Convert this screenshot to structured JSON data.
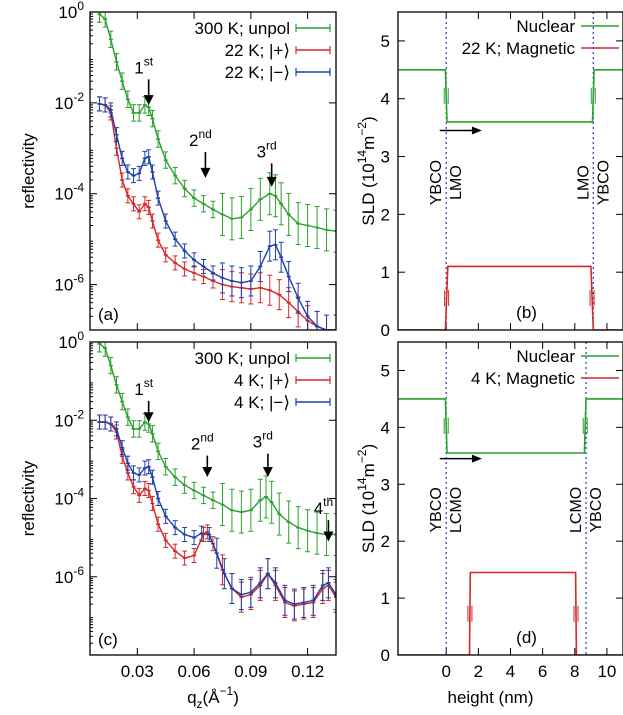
{
  "chart_data": [
    {
      "panel": "a",
      "type": "line",
      "panel_label": "(a)",
      "xlabel": "",
      "ylabel": "reflectivity",
      "xlim": [
        0.005,
        0.135
      ],
      "ylim_log10": [
        -7,
        0
      ],
      "y_scale": "log",
      "x_ticks": [],
      "y_ticks": [
        {
          "exp": 0,
          "label": "10",
          "sup": "0"
        },
        {
          "exp": -2,
          "label": "10",
          "sup": "-2"
        },
        {
          "exp": -4,
          "label": "10",
          "sup": "-4"
        },
        {
          "exp": -6,
          "label": "10",
          "sup": "-6"
        }
      ],
      "legend_position": "top-right",
      "series": [
        {
          "name": "300 K; unpol",
          "color": "#2ca02c",
          "x": [
            0.01,
            0.013,
            0.016,
            0.019,
            0.022,
            0.025,
            0.028,
            0.031,
            0.034,
            0.036,
            0.038,
            0.041,
            0.045,
            0.05,
            0.055,
            0.06,
            0.065,
            0.07,
            0.075,
            0.08,
            0.085,
            0.09,
            0.095,
            0.1,
            0.103,
            0.106,
            0.11,
            0.115,
            0.12,
            0.125,
            0.13,
            0.135
          ],
          "y": [
            0.9,
            0.7,
            0.25,
            0.08,
            0.03,
            0.012,
            0.006,
            0.006,
            0.009,
            0.008,
            0.0045,
            0.0016,
            0.00055,
            0.00025,
            0.00013,
            8e-05,
            6e-05,
            4.5e-05,
            3.5e-05,
            2.8e-05,
            3e-05,
            4.5e-05,
            7.5e-05,
            0.0001,
            9e-05,
            6e-05,
            3.5e-05,
            2.2e-05,
            2e-05,
            1.8e-05,
            1.6e-05,
            1.5e-05
          ]
        },
        {
          "name": "22 K; |+⟩",
          "color": "#d62728",
          "x": [
            0.01,
            0.013,
            0.016,
            0.019,
            0.022,
            0.025,
            0.028,
            0.031,
            0.034,
            0.036,
            0.038,
            0.041,
            0.045,
            0.05,
            0.055,
            0.06,
            0.065,
            0.07,
            0.075,
            0.08,
            0.085,
            0.09,
            0.095,
            0.1,
            0.105,
            0.11,
            0.115,
            0.12,
            0.125,
            0.13,
            0.135
          ],
          "y": [
            0.0095,
            0.009,
            0.006,
            0.001,
            0.0002,
            9e-05,
            6e-05,
            4e-05,
            6e-05,
            5e-05,
            2.5e-05,
            9.5e-06,
            4.5e-06,
            3e-06,
            2.2e-06,
            1.8e-06,
            1.5e-06,
            1.2e-06,
            1e-06,
            9e-07,
            8.5e-07,
            8e-07,
            8.5e-07,
            7.5e-07,
            6e-07,
            4e-07,
            2.5e-07,
            1.6e-07,
            1.2e-07,
            1e-07,
            1e-07
          ]
        },
        {
          "name": "22 K; |−⟩",
          "color": "#1f3fa8",
          "x": [
            0.01,
            0.013,
            0.016,
            0.019,
            0.022,
            0.025,
            0.028,
            0.031,
            0.034,
            0.036,
            0.038,
            0.041,
            0.045,
            0.05,
            0.055,
            0.06,
            0.065,
            0.07,
            0.075,
            0.08,
            0.085,
            0.09,
            0.095,
            0.1,
            0.103,
            0.106,
            0.11,
            0.115,
            0.12,
            0.125,
            0.13,
            0.135
          ],
          "y": [
            0.0095,
            0.009,
            0.007,
            0.002,
            0.0006,
            0.0003,
            0.00025,
            0.00028,
            0.0006,
            0.00065,
            0.0003,
            8e-05,
            2.5e-05,
            1e-05,
            5.5e-06,
            3.5e-06,
            2.5e-06,
            1.8e-06,
            1.4e-06,
            1.2e-06,
            1.1e-06,
            1.2e-06,
            2.5e-06,
            7e-06,
            7.5e-06,
            4e-06,
            1.5e-06,
            5e-07,
            2e-07,
            1.2e-07,
            1e-07,
            1e-07
          ]
        }
      ],
      "annotations": [
        {
          "text": "1",
          "sup": "st",
          "x": 0.036,
          "y_log10": -1.35,
          "arrow_to_log10": -2.05
        },
        {
          "text": "2",
          "sup": "nd",
          "x": 0.066,
          "y_log10": -2.95,
          "arrow_to_log10": -3.65
        },
        {
          "text": "3",
          "sup": "rd",
          "x": 0.101,
          "y_log10": -3.2,
          "arrow_to_log10": -3.85
        }
      ]
    },
    {
      "panel": "b",
      "type": "line",
      "panel_label": "(b)",
      "xlabel": "",
      "ylabel": "SLD (10",
      "ylabel_sup1": "14",
      "ylabel_mid": "m",
      "ylabel_sup2": "−2",
      "ylabel_end": ")",
      "xlim": [
        -3,
        11
      ],
      "ylim": [
        0,
        5.5
      ],
      "y_ticks": [
        0,
        1,
        2,
        3,
        4,
        5
      ],
      "x_ticks": [],
      "legend_position": "top-right",
      "series": [
        {
          "name": "Nuclear",
          "color": "#2ca02c",
          "x": [
            -3,
            -0.05,
            0.05,
            9.1,
            9.2,
            11
          ],
          "y": [
            4.5,
            4.5,
            3.6,
            3.6,
            4.5,
            4.5
          ]
        },
        {
          "name": "22 K; Magnetic",
          "color": "#d62728",
          "x": [
            -3,
            -0.05,
            0.1,
            9.0,
            9.15,
            11
          ],
          "y": [
            0,
            0,
            1.1,
            1.1,
            0,
            0
          ]
        }
      ],
      "interfaces": [
        0,
        9.15
      ],
      "interface_labels": [
        {
          "x": 0,
          "left": "YBCO",
          "right": "LMO"
        },
        {
          "x": 9.15,
          "left": "LMO",
          "right": "YBCO"
        }
      ]
    },
    {
      "panel": "c",
      "type": "line",
      "panel_label": "(c)",
      "xlabel": "q",
      "xlabel_sub": "z",
      "xlabel_end": "(Å",
      "xlabel_sup": "−1",
      "xlabel_close": ")",
      "ylabel": "reflectivity",
      "xlim": [
        0.005,
        0.135
      ],
      "ylim_log10": [
        -8,
        0
      ],
      "y_scale": "log",
      "x_ticks": [
        0.03,
        0.06,
        0.09,
        0.12
      ],
      "x_tick_labels": [
        "0.03",
        "0.06",
        "0.09",
        "0.12"
      ],
      "y_ticks": [
        {
          "exp": 0,
          "label": "10",
          "sup": "0"
        },
        {
          "exp": -2,
          "label": "10",
          "sup": "-2"
        },
        {
          "exp": -4,
          "label": "10",
          "sup": "-4"
        },
        {
          "exp": -6,
          "label": "10",
          "sup": "-6"
        }
      ],
      "legend_position": "top-right",
      "series": [
        {
          "name": "300 K; unpol",
          "color": "#2ca02c",
          "x": [
            0.01,
            0.013,
            0.016,
            0.019,
            0.022,
            0.025,
            0.028,
            0.031,
            0.034,
            0.036,
            0.038,
            0.041,
            0.045,
            0.05,
            0.055,
            0.06,
            0.065,
            0.07,
            0.075,
            0.08,
            0.085,
            0.09,
            0.095,
            0.098,
            0.101,
            0.105,
            0.11,
            0.115,
            0.12,
            0.125,
            0.13,
            0.135
          ],
          "y": [
            0.9,
            0.7,
            0.25,
            0.08,
            0.03,
            0.012,
            0.006,
            0.006,
            0.009,
            0.008,
            0.0045,
            0.0016,
            0.00065,
            0.00035,
            0.00022,
            0.00016,
            0.00012,
            9e-05,
            7e-05,
            5e-05,
            4.5e-05,
            5e-05,
            9e-05,
            0.00011,
            8e-05,
            4e-05,
            2.5e-05,
            1.8e-05,
            1.5e-05,
            1.3e-05,
            1.2e-05,
            1.2e-05
          ]
        },
        {
          "name": "4 K; |+⟩",
          "color": "#d62728",
          "x": [
            0.01,
            0.013,
            0.016,
            0.019,
            0.022,
            0.025,
            0.028,
            0.031,
            0.034,
            0.036,
            0.038,
            0.041,
            0.045,
            0.05,
            0.055,
            0.06,
            0.065,
            0.067,
            0.07,
            0.075,
            0.08,
            0.085,
            0.09,
            0.095,
            0.099,
            0.103,
            0.108,
            0.113,
            0.118,
            0.123,
            0.128,
            0.131,
            0.135
          ],
          "y": [
            0.009,
            0.009,
            0.008,
            0.005,
            0.0012,
            0.00045,
            0.0002,
            0.00012,
            0.00018,
            0.00016,
            7.5e-05,
            2.2e-05,
            8.5e-06,
            4.5e-06,
            3e-06,
            3.5e-06,
            1.2e-05,
            1.4e-05,
            7e-06,
            1.5e-06,
            5e-07,
            3e-07,
            3.5e-07,
            6e-07,
            1.2e-06,
            6e-07,
            2.2e-07,
            1.8e-07,
            2e-07,
            2.2e-07,
            5e-07,
            6e-07,
            3e-07
          ]
        },
        {
          "name": "4 K; |−⟩",
          "color": "#1f3fa8",
          "x": [
            0.01,
            0.013,
            0.016,
            0.019,
            0.022,
            0.025,
            0.028,
            0.031,
            0.034,
            0.036,
            0.038,
            0.041,
            0.045,
            0.05,
            0.055,
            0.06,
            0.064,
            0.068,
            0.072,
            0.076,
            0.08,
            0.085,
            0.09,
            0.095,
            0.099,
            0.103,
            0.108,
            0.113,
            0.118,
            0.123,
            0.128,
            0.131,
            0.135
          ],
          "y": [
            0.009,
            0.009,
            0.008,
            0.006,
            0.002,
            0.0008,
            0.00045,
            0.0004,
            0.0006,
            0.00065,
            0.00035,
            0.0001,
            3.5e-05,
            1.8e-05,
            1.2e-05,
            1e-05,
            1.3e-05,
            1.2e-05,
            4e-06,
            1.2e-06,
            5e-07,
            3.5e-07,
            4e-07,
            7e-07,
            1.2e-06,
            7e-07,
            2.5e-07,
            2e-07,
            2.2e-07,
            2.5e-07,
            6e-07,
            7e-07,
            3.5e-07
          ]
        }
      ],
      "annotations": [
        {
          "text": "1",
          "sup": "st",
          "x": 0.036,
          "y_log10": -1.35,
          "arrow_to_log10": -2.05
        },
        {
          "text": "2",
          "sup": "nd",
          "x": 0.067,
          "y_log10": -2.75,
          "arrow_to_log10": -3.45
        },
        {
          "text": "3",
          "sup": "rd",
          "x": 0.099,
          "y_log10": -2.7,
          "arrow_to_log10": -3.45
        },
        {
          "text": "4",
          "sup": "th",
          "x": 0.131,
          "y_log10": -4.4,
          "arrow_to_log10": -5.1
        }
      ]
    },
    {
      "panel": "d",
      "type": "line",
      "panel_label": "(d)",
      "xlabel": "height (nm)",
      "ylabel": "SLD (10",
      "ylabel_sup1": "14",
      "ylabel_mid": "m",
      "ylabel_sup2": "−2",
      "ylabel_end": ")",
      "xlim": [
        -3,
        11
      ],
      "ylim": [
        0,
        5.5
      ],
      "y_ticks": [
        0,
        1,
        2,
        3,
        4,
        5
      ],
      "x_ticks": [
        0,
        2,
        4,
        6,
        8,
        10
      ],
      "x_tick_labels": [
        "0",
        "2",
        "4",
        "6",
        "8",
        "10"
      ],
      "legend_position": "top-right",
      "series": [
        {
          "name": "Nuclear",
          "color": "#2ca02c",
          "x": [
            -3,
            -0.05,
            0.05,
            8.6,
            8.7,
            11
          ],
          "y": [
            4.5,
            4.5,
            3.55,
            3.55,
            4.5,
            4.5
          ]
        },
        {
          "name": "4 K; Magnetic",
          "color": "#d62728",
          "x": [
            -3,
            1.45,
            1.5,
            8.05,
            8.1,
            11
          ],
          "y": [
            0,
            0,
            1.45,
            1.45,
            0,
            0
          ]
        }
      ],
      "interfaces": [
        0,
        8.7
      ],
      "interface_labels": [
        {
          "x": 0,
          "left": "YBCO",
          "right": "LCMO"
        },
        {
          "x": 8.7,
          "left": "LCMO",
          "right": "YBCO"
        }
      ]
    }
  ]
}
